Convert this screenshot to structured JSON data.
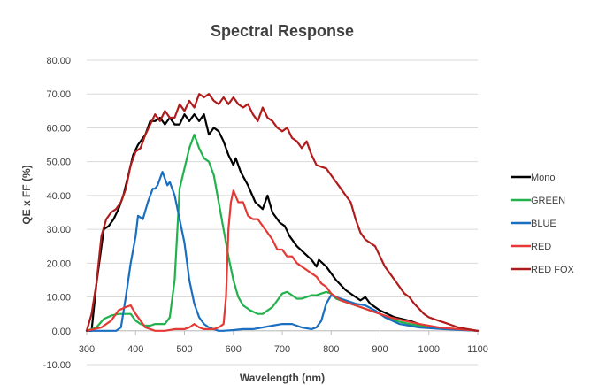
{
  "chart_data": {
    "type": "line",
    "title": "Spectral Response",
    "xlabel": "Wavelength (nm)",
    "ylabel": "QE x FF (%)",
    "xlim": [
      300,
      1100
    ],
    "ylim": [
      -10,
      80
    ],
    "xticks": [
      "300",
      "400",
      "500",
      "600",
      "700",
      "800",
      "900",
      "1000",
      "1100"
    ],
    "yticks": [
      "-10.00",
      "0.00",
      "10.00",
      "20.00",
      "30.00",
      "40.00",
      "50.00",
      "60.00",
      "70.00",
      "80.00"
    ],
    "grid": "horizontal",
    "legend_position": "right",
    "series": [
      {
        "name": "Mono",
        "color": "#000000",
        "points": [
          [
            300,
            0
          ],
          [
            310,
            0
          ],
          [
            320,
            14
          ],
          [
            335,
            30
          ],
          [
            345,
            31
          ],
          [
            355,
            33
          ],
          [
            365,
            36
          ],
          [
            375,
            40
          ],
          [
            385,
            46
          ],
          [
            395,
            52
          ],
          [
            405,
            55
          ],
          [
            420,
            58
          ],
          [
            430,
            62
          ],
          [
            440,
            62
          ],
          [
            450,
            63
          ],
          [
            460,
            61
          ],
          [
            470,
            63
          ],
          [
            480,
            61
          ],
          [
            490,
            61
          ],
          [
            500,
            64
          ],
          [
            510,
            62
          ],
          [
            520,
            64
          ],
          [
            530,
            62
          ],
          [
            540,
            64
          ],
          [
            550,
            58
          ],
          [
            560,
            60
          ],
          [
            570,
            59
          ],
          [
            580,
            56
          ],
          [
            590,
            52
          ],
          [
            600,
            49
          ],
          [
            605,
            51
          ],
          [
            615,
            47
          ],
          [
            630,
            43
          ],
          [
            645,
            38
          ],
          [
            660,
            36
          ],
          [
            670,
            40
          ],
          [
            680,
            35
          ],
          [
            695,
            32
          ],
          [
            705,
            31
          ],
          [
            715,
            28
          ],
          [
            730,
            25
          ],
          [
            745,
            23
          ],
          [
            760,
            21
          ],
          [
            770,
            19
          ],
          [
            775,
            21
          ],
          [
            790,
            19
          ],
          [
            810,
            15
          ],
          [
            830,
            12
          ],
          [
            850,
            10
          ],
          [
            860,
            9
          ],
          [
            870,
            10
          ],
          [
            880,
            8
          ],
          [
            900,
            6
          ],
          [
            930,
            4
          ],
          [
            960,
            3
          ],
          [
            1000,
            1
          ],
          [
            1050,
            0.5
          ],
          [
            1100,
            0
          ]
        ]
      },
      {
        "name": "GREEN",
        "color": "#22b14c",
        "points": [
          [
            300,
            0
          ],
          [
            320,
            1
          ],
          [
            335,
            3.5
          ],
          [
            350,
            4.5
          ],
          [
            365,
            5
          ],
          [
            380,
            5
          ],
          [
            390,
            5
          ],
          [
            400,
            3
          ],
          [
            410,
            2
          ],
          [
            420,
            1.5
          ],
          [
            430,
            1.5
          ],
          [
            440,
            2
          ],
          [
            450,
            2
          ],
          [
            460,
            2
          ],
          [
            470,
            4
          ],
          [
            480,
            15
          ],
          [
            490,
            42
          ],
          [
            500,
            48
          ],
          [
            510,
            54
          ],
          [
            520,
            58
          ],
          [
            530,
            54
          ],
          [
            540,
            51
          ],
          [
            550,
            50
          ],
          [
            560,
            46
          ],
          [
            570,
            38
          ],
          [
            580,
            30
          ],
          [
            590,
            22
          ],
          [
            600,
            15
          ],
          [
            610,
            10
          ],
          [
            620,
            7.5
          ],
          [
            635,
            6
          ],
          [
            650,
            5
          ],
          [
            660,
            5
          ],
          [
            670,
            6
          ],
          [
            680,
            7
          ],
          [
            690,
            9
          ],
          [
            700,
            11
          ],
          [
            710,
            11.5
          ],
          [
            720,
            10.5
          ],
          [
            730,
            9.5
          ],
          [
            740,
            9.5
          ],
          [
            750,
            10
          ],
          [
            760,
            10.5
          ],
          [
            770,
            10.5
          ],
          [
            780,
            11
          ],
          [
            790,
            11.5
          ],
          [
            800,
            11
          ],
          [
            810,
            9.5
          ],
          [
            820,
            9
          ],
          [
            840,
            8
          ],
          [
            860,
            7
          ],
          [
            880,
            6
          ],
          [
            900,
            5
          ],
          [
            930,
            3
          ],
          [
            960,
            2
          ],
          [
            1000,
            1
          ],
          [
            1050,
            0.5
          ],
          [
            1100,
            0
          ]
        ]
      },
      {
        "name": "BLUE",
        "color": "#1a6fc0",
        "points": [
          [
            300,
            0
          ],
          [
            350,
            0
          ],
          [
            360,
            0
          ],
          [
            370,
            1
          ],
          [
            380,
            10
          ],
          [
            390,
            20
          ],
          [
            400,
            28
          ],
          [
            405,
            34
          ],
          [
            415,
            33
          ],
          [
            425,
            38
          ],
          [
            435,
            42
          ],
          [
            440,
            42
          ],
          [
            445,
            43
          ],
          [
            455,
            47
          ],
          [
            465,
            43
          ],
          [
            470,
            44
          ],
          [
            480,
            40
          ],
          [
            490,
            33
          ],
          [
            500,
            26
          ],
          [
            510,
            15
          ],
          [
            520,
            8
          ],
          [
            530,
            4
          ],
          [
            540,
            2
          ],
          [
            550,
            1
          ],
          [
            560,
            0.5
          ],
          [
            570,
            0
          ],
          [
            580,
            0
          ],
          [
            600,
            0.2
          ],
          [
            620,
            0.5
          ],
          [
            640,
            0.5
          ],
          [
            660,
            1
          ],
          [
            680,
            1.5
          ],
          [
            700,
            2
          ],
          [
            720,
            2
          ],
          [
            740,
            1
          ],
          [
            760,
            0.5
          ],
          [
            770,
            1
          ],
          [
            780,
            3
          ],
          [
            790,
            8
          ],
          [
            800,
            10.5
          ],
          [
            810,
            10
          ],
          [
            830,
            9
          ],
          [
            850,
            8
          ],
          [
            870,
            7.5
          ],
          [
            890,
            6
          ],
          [
            910,
            4
          ],
          [
            940,
            2
          ],
          [
            980,
            1
          ],
          [
            1030,
            0.5
          ],
          [
            1100,
            0
          ]
        ]
      },
      {
        "name": "RED",
        "color": "#e53935",
        "points": [
          [
            300,
            0
          ],
          [
            330,
            1
          ],
          [
            350,
            3
          ],
          [
            365,
            6
          ],
          [
            380,
            7
          ],
          [
            390,
            7.5
          ],
          [
            400,
            5
          ],
          [
            410,
            3
          ],
          [
            420,
            1
          ],
          [
            440,
            0
          ],
          [
            460,
            0
          ],
          [
            480,
            0.5
          ],
          [
            500,
            0.5
          ],
          [
            510,
            1
          ],
          [
            520,
            2
          ],
          [
            530,
            1
          ],
          [
            540,
            0.5
          ],
          [
            560,
            0.5
          ],
          [
            570,
            1
          ],
          [
            580,
            2
          ],
          [
            585,
            10
          ],
          [
            590,
            30
          ],
          [
            595,
            38
          ],
          [
            600,
            41.5
          ],
          [
            610,
            38
          ],
          [
            620,
            38
          ],
          [
            630,
            34
          ],
          [
            640,
            33
          ],
          [
            650,
            33
          ],
          [
            660,
            31
          ],
          [
            670,
            29
          ],
          [
            680,
            27
          ],
          [
            690,
            24
          ],
          [
            700,
            24
          ],
          [
            710,
            22
          ],
          [
            720,
            22
          ],
          [
            730,
            20
          ],
          [
            740,
            19
          ],
          [
            750,
            18
          ],
          [
            760,
            17
          ],
          [
            770,
            16
          ],
          [
            780,
            14
          ],
          [
            790,
            13
          ],
          [
            800,
            11
          ],
          [
            810,
            10
          ],
          [
            820,
            9
          ],
          [
            840,
            8
          ],
          [
            860,
            7
          ],
          [
            880,
            6
          ],
          [
            900,
            5
          ],
          [
            920,
            4
          ],
          [
            950,
            3
          ],
          [
            980,
            2
          ],
          [
            1020,
            1
          ],
          [
            1060,
            0.5
          ],
          [
            1100,
            0
          ]
        ]
      },
      {
        "name": "RED FOX",
        "color": "#b01c1c",
        "points": [
          [
            300,
            0
          ],
          [
            310,
            5
          ],
          [
            320,
            14
          ],
          [
            330,
            28
          ],
          [
            340,
            33
          ],
          [
            350,
            35
          ],
          [
            360,
            36
          ],
          [
            370,
            38
          ],
          [
            380,
            42
          ],
          [
            390,
            49
          ],
          [
            400,
            53
          ],
          [
            410,
            54
          ],
          [
            420,
            58
          ],
          [
            430,
            61
          ],
          [
            440,
            64
          ],
          [
            450,
            62
          ],
          [
            460,
            65
          ],
          [
            470,
            63
          ],
          [
            480,
            63
          ],
          [
            490,
            67
          ],
          [
            500,
            65
          ],
          [
            510,
            68
          ],
          [
            520,
            66
          ],
          [
            530,
            70
          ],
          [
            540,
            69
          ],
          [
            550,
            70
          ],
          [
            560,
            68
          ],
          [
            570,
            67
          ],
          [
            580,
            69
          ],
          [
            590,
            67
          ],
          [
            600,
            69
          ],
          [
            610,
            67
          ],
          [
            620,
            66
          ],
          [
            630,
            67
          ],
          [
            640,
            64
          ],
          [
            650,
            62
          ],
          [
            660,
            66
          ],
          [
            670,
            63
          ],
          [
            680,
            62
          ],
          [
            690,
            60
          ],
          [
            700,
            59
          ],
          [
            710,
            60
          ],
          [
            720,
            57
          ],
          [
            730,
            56
          ],
          [
            740,
            54
          ],
          [
            750,
            56
          ],
          [
            760,
            52
          ],
          [
            770,
            49
          ],
          [
            780,
            48.5
          ],
          [
            790,
            48
          ],
          [
            800,
            46
          ],
          [
            810,
            44
          ],
          [
            820,
            42
          ],
          [
            830,
            40
          ],
          [
            840,
            38
          ],
          [
            850,
            33
          ],
          [
            860,
            29
          ],
          [
            870,
            27
          ],
          [
            880,
            26
          ],
          [
            890,
            25
          ],
          [
            900,
            22
          ],
          [
            910,
            19
          ],
          [
            920,
            17
          ],
          [
            930,
            15
          ],
          [
            940,
            13
          ],
          [
            950,
            11
          ],
          [
            960,
            10
          ],
          [
            970,
            8
          ],
          [
            980,
            6.5
          ],
          [
            990,
            5
          ],
          [
            1000,
            4
          ],
          [
            1020,
            3
          ],
          [
            1040,
            2
          ],
          [
            1060,
            1
          ],
          [
            1080,
            0.5
          ],
          [
            1100,
            0
          ]
        ]
      }
    ]
  }
}
